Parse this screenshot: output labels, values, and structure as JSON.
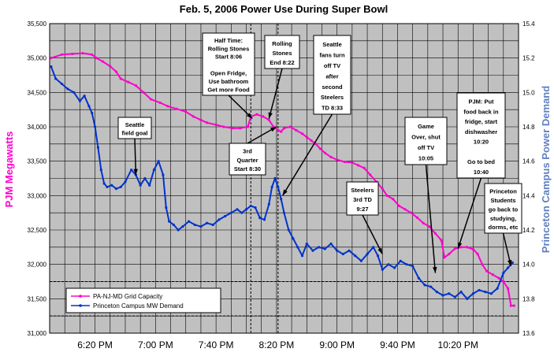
{
  "chart_data": {
    "type": "line",
    "title": "Feb. 5, 2006 Power Use During Super Bowl",
    "ylabel_left": "PJM Megawatts",
    "ylabel_right": "Princeton Campus Power Demand",
    "ylim_left": [
      31000,
      35500
    ],
    "ylim_right": [
      13.6,
      15.4
    ],
    "yticks_left": [
      "31,000",
      "31,250",
      "31,500",
      "31,750",
      "32,000",
      "32,250",
      "32,500",
      "32,750",
      "33,000",
      "33,250",
      "33,500",
      "33,750",
      "34,000",
      "34,250",
      "34,500",
      "34,750",
      "35,000",
      "35,250",
      "35,500"
    ],
    "yticks_left_labeled": [
      31000,
      31500,
      32000,
      32500,
      33000,
      33500,
      34000,
      34500,
      35000,
      35500
    ],
    "yticks_right": [
      "13.6",
      "13.8",
      "14.0",
      "14.2",
      "14.4",
      "14.6",
      "14.8",
      "15.0",
      "15.2",
      "15.4"
    ],
    "xlim_minutes": [
      1070,
      1380
    ],
    "xticks": [
      {
        "t": 1100,
        "label": "6:20 PM"
      },
      {
        "t": 1140,
        "label": "7:00 PM"
      },
      {
        "t": 1180,
        "label": "7:40 PM"
      },
      {
        "t": 1220,
        "label": "8:20 PM"
      },
      {
        "t": 1260,
        "label": "9:00 PM"
      },
      {
        "t": 1300,
        "label": "9:40 PM"
      },
      {
        "t": 1340,
        "label": "10:20 PM"
      }
    ],
    "grid": true,
    "legend_position": "bottom-left",
    "series": [
      {
        "name": "PA-NJ-MD Grid Capacity",
        "axis": "left",
        "color": "#ff00cc",
        "points": [
          [
            1071,
            35000
          ],
          [
            1078,
            35050
          ],
          [
            1085,
            35060
          ],
          [
            1092,
            35070
          ],
          [
            1098,
            35050
          ],
          [
            1101,
            35000
          ],
          [
            1105,
            34950
          ],
          [
            1110,
            34880
          ],
          [
            1114,
            34800
          ],
          [
            1117,
            34700
          ],
          [
            1122,
            34650
          ],
          [
            1127,
            34600
          ],
          [
            1132,
            34500
          ],
          [
            1137,
            34400
          ],
          [
            1143,
            34350
          ],
          [
            1148,
            34300
          ],
          [
            1154,
            34260
          ],
          [
            1160,
            34220
          ],
          [
            1165,
            34150
          ],
          [
            1170,
            34100
          ],
          [
            1174,
            34060
          ],
          [
            1180,
            34030
          ],
          [
            1185,
            34000
          ],
          [
            1191,
            33980
          ],
          [
            1196,
            33980
          ],
          [
            1201,
            34000
          ],
          [
            1203,
            34150
          ],
          [
            1207,
            34180
          ],
          [
            1211,
            34150
          ],
          [
            1215,
            34100
          ],
          [
            1218,
            34000
          ],
          [
            1221,
            33950
          ],
          [
            1223,
            33930
          ],
          [
            1225,
            33980
          ],
          [
            1229,
            34000
          ],
          [
            1233,
            33950
          ],
          [
            1237,
            33900
          ],
          [
            1240,
            33850
          ],
          [
            1243,
            33800
          ],
          [
            1246,
            33750
          ],
          [
            1249,
            33680
          ],
          [
            1252,
            33620
          ],
          [
            1256,
            33560
          ],
          [
            1260,
            33520
          ],
          [
            1265,
            33490
          ],
          [
            1270,
            33480
          ],
          [
            1274,
            33440
          ],
          [
            1278,
            33400
          ],
          [
            1282,
            33300
          ],
          [
            1286,
            33200
          ],
          [
            1290,
            33100
          ],
          [
            1293,
            33000
          ],
          [
            1297,
            32950
          ],
          [
            1301,
            32850
          ],
          [
            1305,
            32800
          ],
          [
            1309,
            32750
          ],
          [
            1313,
            32680
          ],
          [
            1317,
            32600
          ],
          [
            1321,
            32550
          ],
          [
            1325,
            32450
          ],
          [
            1329,
            32350
          ],
          [
            1331,
            32100
          ],
          [
            1334,
            32150
          ],
          [
            1338,
            32230
          ],
          [
            1342,
            32250
          ],
          [
            1346,
            32250
          ],
          [
            1350,
            32220
          ],
          [
            1353,
            32150
          ],
          [
            1356,
            32000
          ],
          [
            1359,
            31900
          ],
          [
            1363,
            31850
          ],
          [
            1367,
            31800
          ],
          [
            1370,
            31750
          ],
          [
            1373,
            31650
          ],
          [
            1375,
            31400
          ],
          [
            1377,
            31400
          ]
        ]
      },
      {
        "name": "Princeton Campus MW Demand",
        "axis": "right",
        "color": "#0033cc",
        "points": [
          [
            1071,
            15.15
          ],
          [
            1074,
            15.08
          ],
          [
            1078,
            15.05
          ],
          [
            1082,
            15.02
          ],
          [
            1086,
            15.0
          ],
          [
            1090,
            14.95
          ],
          [
            1093,
            14.98
          ],
          [
            1096,
            14.92
          ],
          [
            1098,
            14.88
          ],
          [
            1100,
            14.8
          ],
          [
            1102,
            14.68
          ],
          [
            1104,
            14.55
          ],
          [
            1106,
            14.47
          ],
          [
            1108,
            14.45
          ],
          [
            1111,
            14.46
          ],
          [
            1114,
            14.44
          ],
          [
            1117,
            14.45
          ],
          [
            1120,
            14.48
          ],
          [
            1124,
            14.55
          ],
          [
            1127,
            14.52
          ],
          [
            1130,
            14.46
          ],
          [
            1133,
            14.5
          ],
          [
            1136,
            14.46
          ],
          [
            1139,
            14.55
          ],
          [
            1142,
            14.6
          ],
          [
            1145,
            14.52
          ],
          [
            1147,
            14.33
          ],
          [
            1149,
            14.25
          ],
          [
            1152,
            14.23
          ],
          [
            1155,
            14.2
          ],
          [
            1158,
            14.22
          ],
          [
            1162,
            14.25
          ],
          [
            1166,
            14.23
          ],
          [
            1170,
            14.22
          ],
          [
            1174,
            14.24
          ],
          [
            1178,
            14.23
          ],
          [
            1182,
            14.26
          ],
          [
            1186,
            14.28
          ],
          [
            1190,
            14.3
          ],
          [
            1194,
            14.32
          ],
          [
            1197,
            14.3
          ],
          [
            1200,
            14.32
          ],
          [
            1203,
            14.34
          ],
          [
            1206,
            14.33
          ],
          [
            1209,
            14.27
          ],
          [
            1212,
            14.26
          ],
          [
            1215,
            14.35
          ],
          [
            1217,
            14.45
          ],
          [
            1219,
            14.5
          ],
          [
            1221,
            14.45
          ],
          [
            1223,
            14.38
          ],
          [
            1225,
            14.3
          ],
          [
            1228,
            14.2
          ],
          [
            1231,
            14.15
          ],
          [
            1234,
            14.1
          ],
          [
            1237,
            14.05
          ],
          [
            1240,
            14.12
          ],
          [
            1244,
            14.08
          ],
          [
            1248,
            14.1
          ],
          [
            1252,
            14.09
          ],
          [
            1256,
            14.12
          ],
          [
            1260,
            14.08
          ],
          [
            1264,
            14.06
          ],
          [
            1268,
            14.08
          ],
          [
            1272,
            14.05
          ],
          [
            1276,
            14.02
          ],
          [
            1280,
            14.06
          ],
          [
            1284,
            14.1
          ],
          [
            1287,
            14.05
          ],
          [
            1290,
            13.97
          ],
          [
            1294,
            14.0
          ],
          [
            1298,
            13.98
          ],
          [
            1302,
            14.02
          ],
          [
            1306,
            14.0
          ],
          [
            1310,
            13.99
          ],
          [
            1314,
            13.92
          ],
          [
            1318,
            13.88
          ],
          [
            1322,
            13.87
          ],
          [
            1326,
            13.84
          ],
          [
            1330,
            13.82
          ],
          [
            1334,
            13.83
          ],
          [
            1338,
            13.81
          ],
          [
            1342,
            13.84
          ],
          [
            1346,
            13.8
          ],
          [
            1350,
            13.83
          ],
          [
            1354,
            13.85
          ],
          [
            1358,
            13.84
          ],
          [
            1362,
            13.83
          ],
          [
            1366,
            13.86
          ],
          [
            1370,
            13.95
          ],
          [
            1373,
            13.98
          ],
          [
            1376,
            14.01
          ]
        ]
      }
    ],
    "dashed_lines": [
      {
        "orientation": "vertical",
        "t": 1203
      },
      {
        "orientation": "vertical",
        "t": 1221
      },
      {
        "orientation": "horizontal",
        "axis": "left",
        "value": 31750
      },
      {
        "orientation": "horizontal",
        "axis": "left",
        "value": 31250
      }
    ],
    "annotations": [
      {
        "id": "halftime",
        "lines": [
          "Half Time:",
          "Rolling Stones",
          "Start 8:06",
          "",
          "Open Fridge,",
          "Use bathroom",
          "Get more Food"
        ],
        "arrow_to": [
          1204,
          34120
        ]
      },
      {
        "id": "stones-end",
        "lines": [
          "Rolling",
          "Stones",
          "End 8:22"
        ],
        "arrow_to": [
          1215,
          34120
        ]
      },
      {
        "id": "seattle-off",
        "lines": [
          "Seattle",
          "fans turn",
          "off TV",
          "after",
          "second",
          "Steelers",
          "TD 8:33"
        ],
        "arrow_to": [
          1224,
          14.4
        ]
      },
      {
        "id": "seattle-fg",
        "lines": [
          "Seattle",
          "field goal"
        ],
        "arrow_to": [
          1127,
          14.52
        ]
      },
      {
        "id": "third-quarter",
        "lines": [
          "3rd",
          "Quarter",
          "Start 8:30"
        ],
        "arrow_to": [
          1220,
          34000
        ]
      },
      {
        "id": "game-over",
        "lines": [
          "Game",
          "Over, shut",
          "off TV",
          "10:05"
        ],
        "arrow_to": [
          1325,
          13.95
        ]
      },
      {
        "id": "steelers-3rd",
        "lines": [
          "Steelers",
          "3rd TD",
          "9:27"
        ],
        "arrow_to": [
          1290,
          14.06
        ]
      },
      {
        "id": "pjm-food",
        "lines": [
          "PJM: Put",
          "food back in",
          "fridge, start",
          "dishwasher",
          "10:20",
          "",
          "Go to bed",
          "10:40"
        ],
        "arrow_to": [
          1340,
          32230
        ]
      },
      {
        "id": "students",
        "lines": [
          "Princeton",
          "Students",
          "go back to",
          "studying,",
          "dorms, etc"
        ],
        "arrow_to": [
          1375,
          13.99
        ]
      }
    ]
  },
  "legend": {
    "items": [
      {
        "label": "PA-NJ-MD Grid Capacity",
        "color": "#ff00cc"
      },
      {
        "label": "Princeton Campus MW Demand",
        "color": "#0033cc"
      }
    ]
  },
  "colors": {
    "plot_bg": "#c0c0c0",
    "grid": "#000000",
    "left_axis_label": "#ff00cc",
    "right_axis_label": "#6080c0"
  }
}
